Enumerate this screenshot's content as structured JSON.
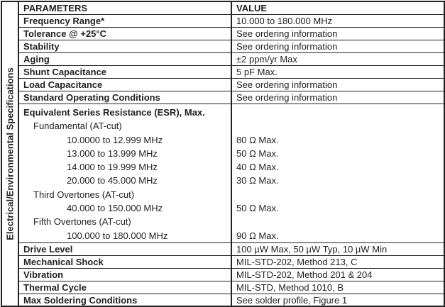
{
  "side_label": "Electrical/Environmental Specifications",
  "header": {
    "parameters": "PARAMETERS",
    "value": "VALUE"
  },
  "rows_top": [
    {
      "param": "Frequency Range*",
      "value": "10.000 to 180.000 MHz"
    },
    {
      "param": "Tolerance @ +25°C",
      "value": "See ordering information"
    },
    {
      "param": "Stability",
      "value": "See ordering information"
    },
    {
      "param": "Aging",
      "value": "±2 ppm/yr Max"
    },
    {
      "param": "Shunt Capacitance",
      "value": "5 pF Max."
    },
    {
      "param": "Load Capacitance",
      "value": "See ordering information"
    },
    {
      "param": "Standard Operating Conditions",
      "value": "See ordering information"
    }
  ],
  "esr": {
    "title": "Equivalent Series Resistance (ESR), Max.",
    "fundamental": "Fundamental (AT-cut)",
    "f1": {
      "range": "10.0000 to 12.999 MHz",
      "value": "80 Ω Max."
    },
    "f2": {
      "range": "13.000 to 13.999 MHz",
      "value": "50 Ω Max."
    },
    "f3": {
      "range": "14.000 to 19.999 MHz",
      "value": "40 Ω Max."
    },
    "f4": {
      "range": "20.000 to 45.000 MHz",
      "value": "30 Ω Max."
    },
    "third": "Third Overtones (AT-cut)",
    "t1": {
      "range": "40.000 to 150.000 MHz",
      "value": "50 Ω Max."
    },
    "fifth": "Fifth Overtones (AT-cut)",
    "v1": {
      "range": "100.000 to 180.000 MHz",
      "value": "90 Ω Max."
    }
  },
  "rows_bottom": [
    {
      "param": "Drive Level",
      "value": "100 µW Max, 50 µW Typ, 10 µW Min"
    },
    {
      "param": "Mechanical Shock",
      "value": "MIL-STD-202, Method 213, C"
    },
    {
      "param": "Vibration",
      "value": "MIL-STD-202, Method 201 & 204"
    },
    {
      "param": "Thermal Cycle",
      "value": "MIL-STD, Method 1010, B"
    },
    {
      "param": "Max Soldering Conditions",
      "value": "See solder profile, Figure 1"
    }
  ]
}
